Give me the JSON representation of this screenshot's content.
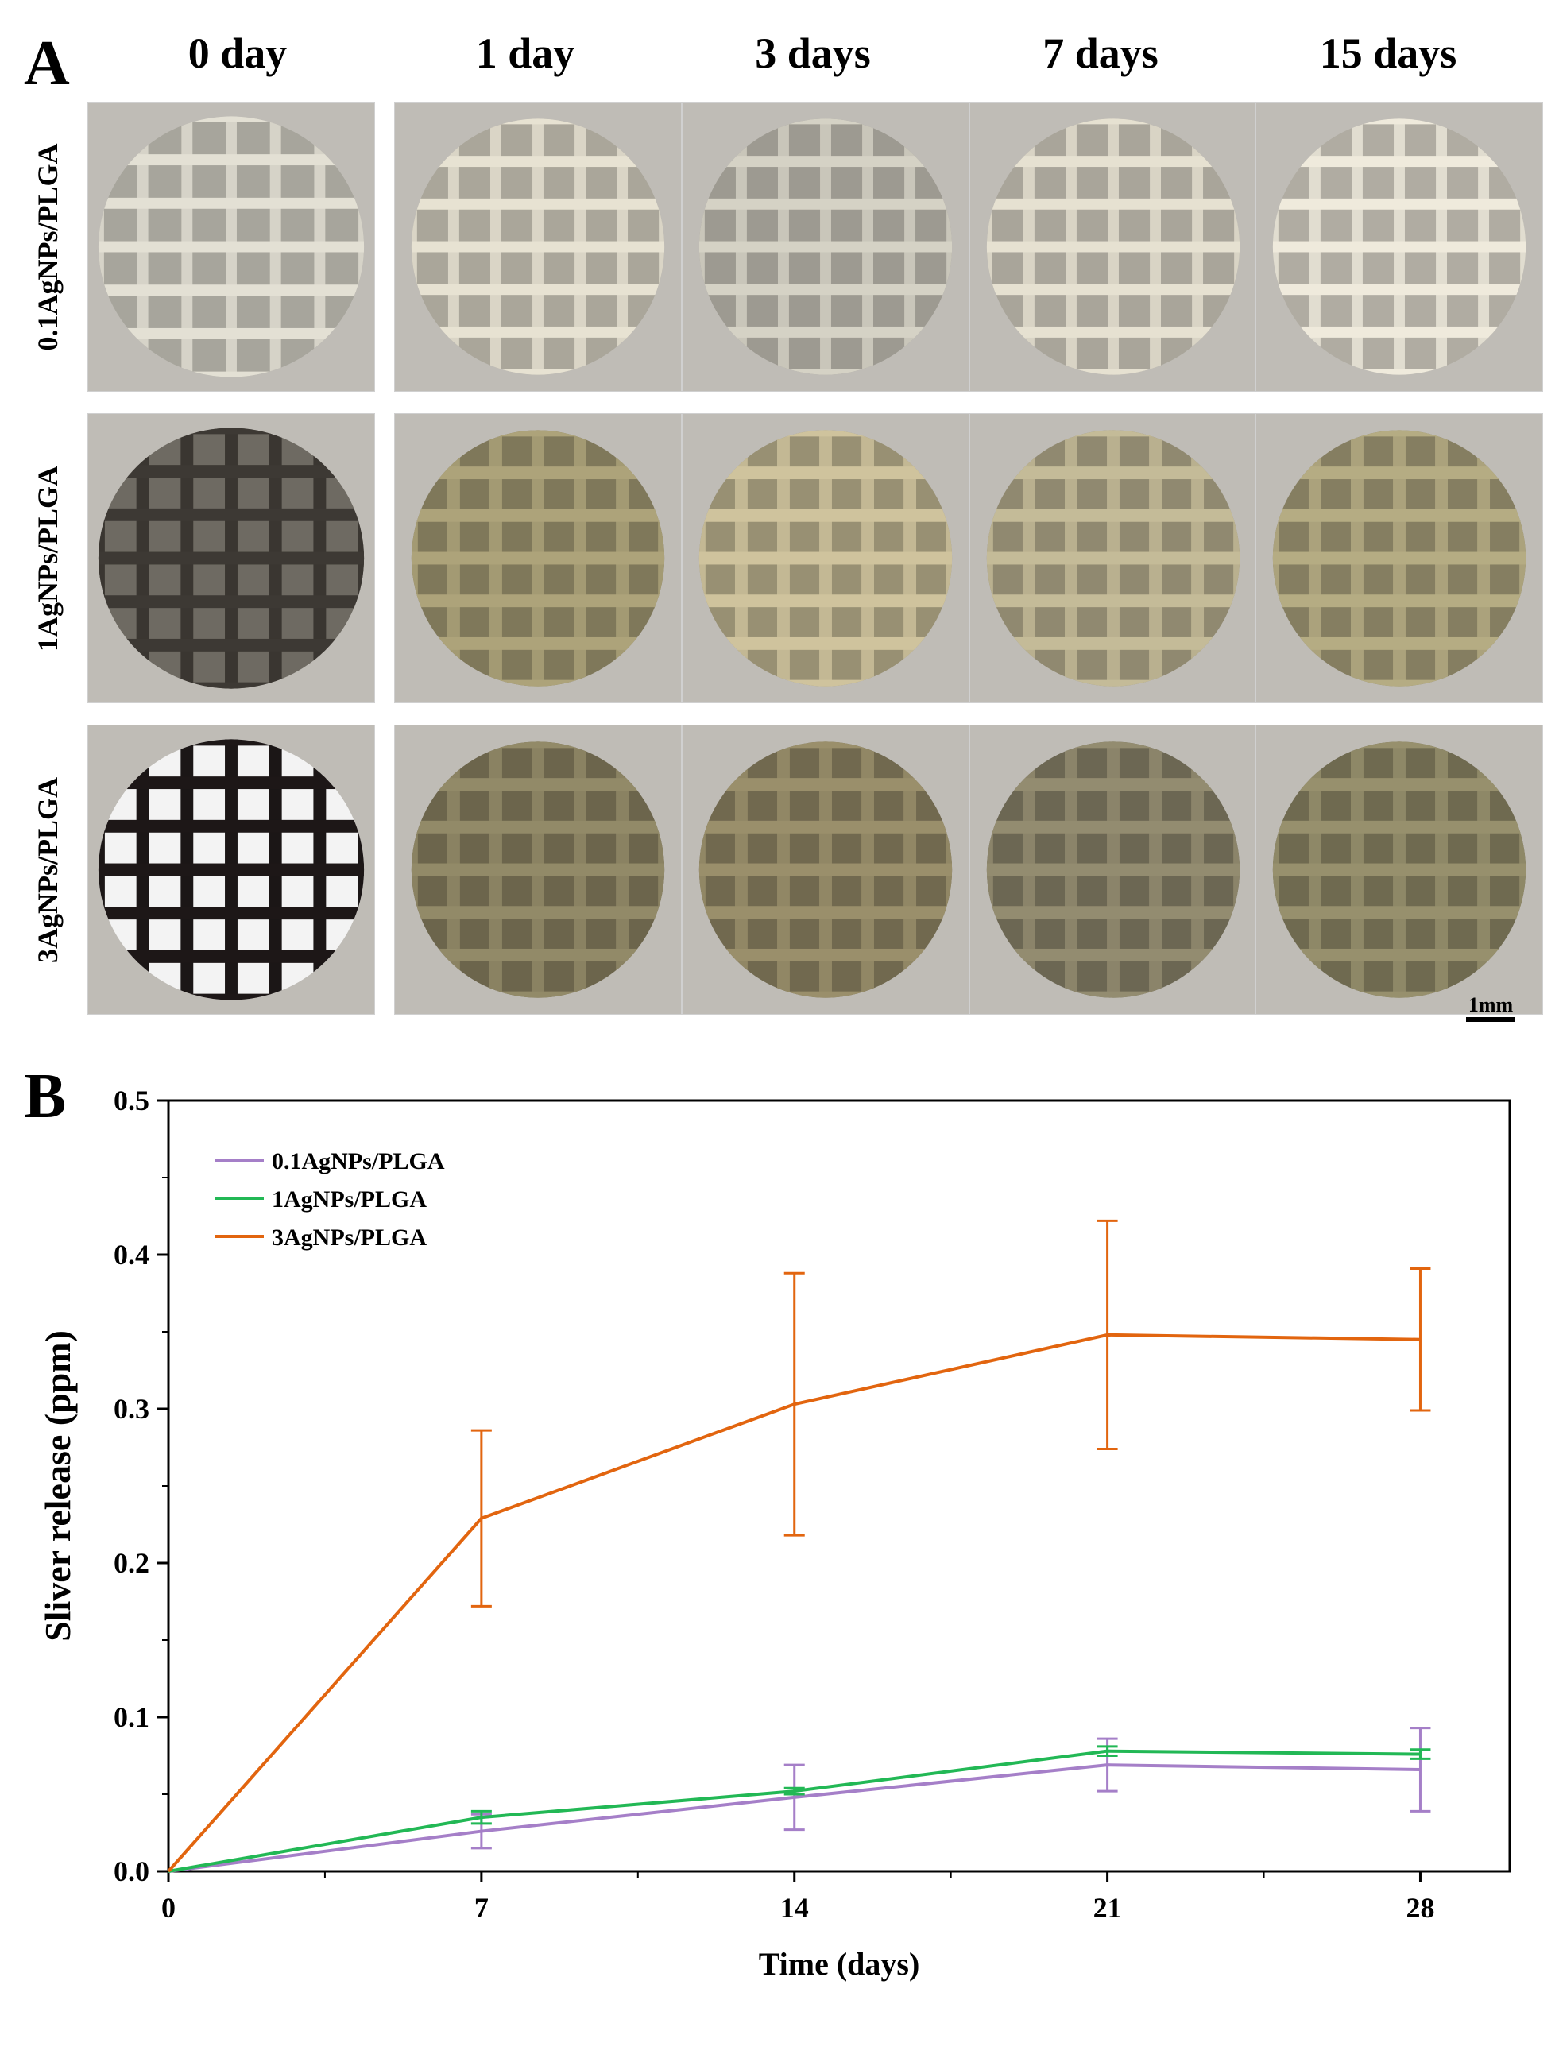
{
  "panel_a": {
    "label": "A",
    "columns": [
      "0 day",
      "1 day",
      "3 days",
      "7 days",
      "15 days"
    ],
    "rows": [
      "0.1AgNPs/PLGA",
      "1AgNPs/PLGA",
      "3AgNPs/PLGA"
    ],
    "scale_bar": "1mm",
    "colors": {
      "0.1AgNPs/PLGA": [
        "#d6d3c8",
        "#dad5c6",
        "#c9c6ba",
        "#d9d4c5",
        "#e1ddd0"
      ],
      "1AgNPs/PLGA": [
        "#3a3631",
        "#a39a73",
        "#c3b894",
        "#b9b08f",
        "#aba27c"
      ],
      "3AgNPs/PLGA": [
        "#1b1616",
        "#8a8262",
        "#918765",
        "#8b846a",
        "#8e8867"
      ]
    }
  },
  "panel_b": {
    "label": "B"
  },
  "chart_data": {
    "type": "line",
    "title": "",
    "xlabel": "Time (days)",
    "ylabel": "Sliver release (ppm)",
    "x": [
      0,
      7,
      14,
      21,
      28
    ],
    "xticks": [
      "0",
      "7",
      "14",
      "21",
      "28"
    ],
    "yticks": [
      "0.0",
      "0.1",
      "0.2",
      "0.3",
      "0.4",
      "0.5"
    ],
    "xlim": [
      0,
      30
    ],
    "ylim": [
      0,
      0.5
    ],
    "legend_position": "top-left",
    "series": [
      {
        "name": "0.1AgNPs/PLGA",
        "color": "#a57fc8",
        "values": [
          0,
          0.026,
          0.048,
          0.069,
          0.066
        ],
        "errors": [
          0,
          0.011,
          0.021,
          0.017,
          0.027
        ]
      },
      {
        "name": "1AgNPs/PLGA",
        "color": "#22b855",
        "values": [
          0,
          0.035,
          0.052,
          0.078,
          0.076
        ],
        "errors": [
          0,
          0.004,
          0.002,
          0.003,
          0.003
        ]
      },
      {
        "name": "3AgNPs/PLGA",
        "color": "#e2650f",
        "values": [
          0,
          0.229,
          0.303,
          0.348,
          0.345
        ],
        "errors": [
          0,
          0.057,
          0.085,
          0.074,
          0.046
        ]
      }
    ]
  }
}
